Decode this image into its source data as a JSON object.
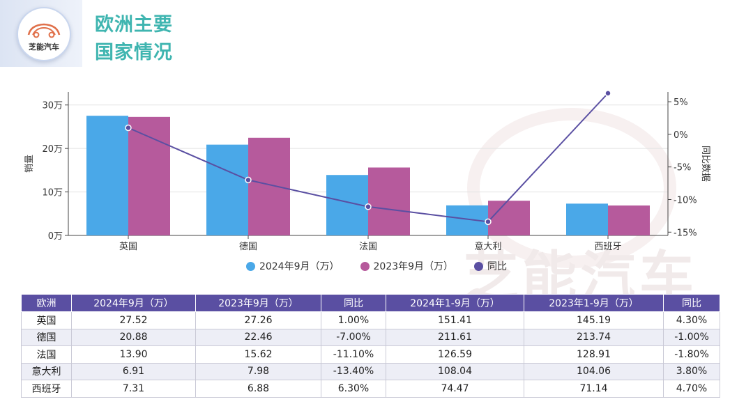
{
  "brand": {
    "logo_text": "芝能汽车",
    "watermark_text": "芝能汽车"
  },
  "title": {
    "line1": "欧洲主要",
    "line2": "国家情况"
  },
  "colors": {
    "bar2024": "#4aa8e8",
    "bar2023": "#b65a9c",
    "line": "#5a4fa2",
    "title": "#3fb5b0"
  },
  "chart_data": {
    "type": "bar",
    "categories": [
      "英国",
      "德国",
      "法国",
      "意大利",
      "西班牙"
    ],
    "series": [
      {
        "name": "2024年9月（万）",
        "type": "bar",
        "axis": "left",
        "values": [
          27.52,
          20.88,
          13.9,
          6.91,
          7.31
        ]
      },
      {
        "name": "2023年9月（万）",
        "type": "bar",
        "axis": "left",
        "values": [
          27.26,
          22.46,
          15.62,
          7.98,
          6.88
        ]
      },
      {
        "name": "同比",
        "type": "line",
        "axis": "right",
        "values": [
          1.0,
          -7.0,
          -11.1,
          -13.4,
          6.3
        ]
      }
    ],
    "ylabel_left": "销量",
    "ylabel_right": "同比数据",
    "ylim_left": [
      0,
      33
    ],
    "yticks_left": [
      "0万",
      "10万",
      "20万",
      "30万"
    ],
    "ylim_right": [
      -15.5,
      6.5
    ],
    "yticks_right": [
      "-15%",
      "-10%",
      "-5%",
      "0%",
      "5%"
    ],
    "grid": true,
    "legend_position": "bottom"
  },
  "table": {
    "headers": [
      "欧洲",
      "2024年9月（万）",
      "2023年9月（万）",
      "同比",
      "2024年1-9月（万）",
      "2023年1-9月（万）",
      "同比"
    ],
    "rows": [
      [
        "英国",
        "27.52",
        "27.26",
        "1.00%",
        "151.41",
        "145.19",
        "4.30%"
      ],
      [
        "德国",
        "20.88",
        "22.46",
        "-7.00%",
        "211.61",
        "213.74",
        "-1.00%"
      ],
      [
        "法国",
        "13.90",
        "15.62",
        "-11.10%",
        "126.59",
        "128.91",
        "-1.80%"
      ],
      [
        "意大利",
        "6.91",
        "7.98",
        "-13.40%",
        "108.04",
        "104.06",
        "3.80%"
      ],
      [
        "西班牙",
        "7.31",
        "6.88",
        "6.30%",
        "74.47",
        "71.14",
        "4.70%"
      ]
    ]
  }
}
